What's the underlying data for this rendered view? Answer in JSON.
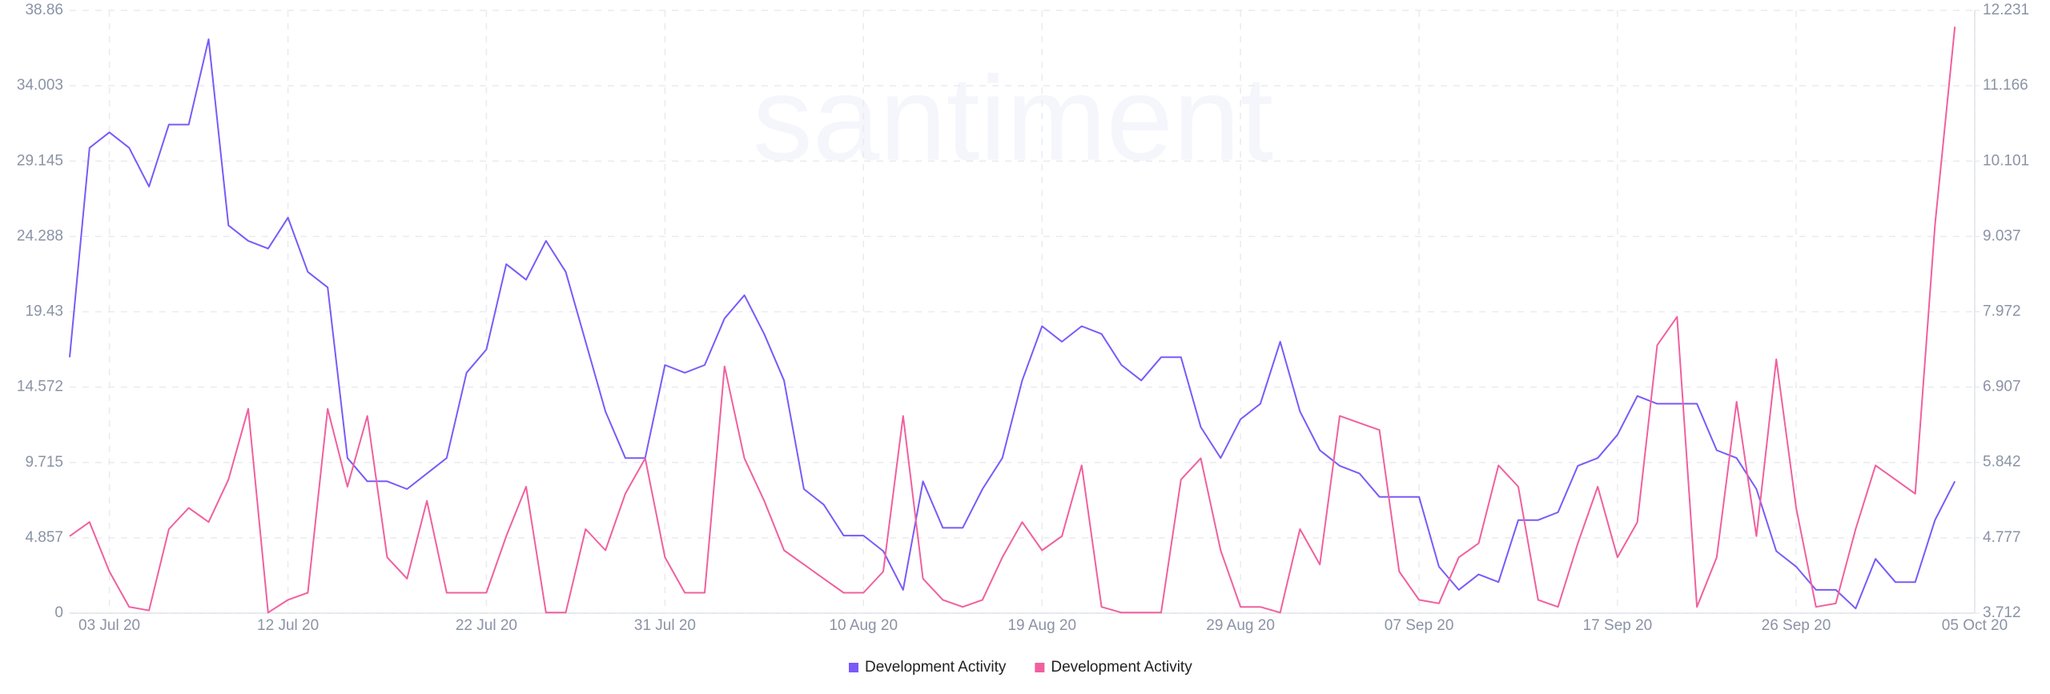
{
  "chart_data": {
    "type": "line",
    "watermark": "santiment",
    "x": [
      "2020-07-01",
      "2020-07-02",
      "2020-07-03",
      "2020-07-04",
      "2020-07-05",
      "2020-07-06",
      "2020-07-07",
      "2020-07-08",
      "2020-07-09",
      "2020-07-10",
      "2020-07-11",
      "2020-07-12",
      "2020-07-13",
      "2020-07-14",
      "2020-07-15",
      "2020-07-16",
      "2020-07-17",
      "2020-07-18",
      "2020-07-19",
      "2020-07-20",
      "2020-07-21",
      "2020-07-22",
      "2020-07-23",
      "2020-07-24",
      "2020-07-25",
      "2020-07-26",
      "2020-07-27",
      "2020-07-28",
      "2020-07-29",
      "2020-07-30",
      "2020-07-31",
      "2020-08-01",
      "2020-08-02",
      "2020-08-03",
      "2020-08-04",
      "2020-08-05",
      "2020-08-06",
      "2020-08-07",
      "2020-08-08",
      "2020-08-09",
      "2020-08-10",
      "2020-08-11",
      "2020-08-12",
      "2020-08-13",
      "2020-08-14",
      "2020-08-15",
      "2020-08-16",
      "2020-08-17",
      "2020-08-18",
      "2020-08-19",
      "2020-08-20",
      "2020-08-21",
      "2020-08-22",
      "2020-08-23",
      "2020-08-24",
      "2020-08-25",
      "2020-08-26",
      "2020-08-27",
      "2020-08-28",
      "2020-08-29",
      "2020-08-30",
      "2020-08-31",
      "2020-09-01",
      "2020-09-02",
      "2020-09-03",
      "2020-09-04",
      "2020-09-05",
      "2020-09-06",
      "2020-09-07",
      "2020-09-08",
      "2020-09-09",
      "2020-09-10",
      "2020-09-11",
      "2020-09-12",
      "2020-09-13",
      "2020-09-14",
      "2020-09-15",
      "2020-09-16",
      "2020-09-17",
      "2020-09-18",
      "2020-09-19",
      "2020-09-20",
      "2020-09-21",
      "2020-09-22",
      "2020-09-23",
      "2020-09-24",
      "2020-09-25",
      "2020-09-26",
      "2020-09-27",
      "2020-09-28",
      "2020-09-29",
      "2020-09-30",
      "2020-10-01",
      "2020-10-02",
      "2020-10-03",
      "2020-10-04"
    ],
    "series": [
      {
        "name": "Development Activity",
        "color": "#7a5af8",
        "axis": "y",
        "values": [
          16.5,
          30,
          31,
          30,
          27.5,
          31.5,
          31.5,
          37,
          25,
          24,
          23.5,
          25.5,
          22,
          21,
          10,
          8.5,
          8.5,
          8,
          9,
          10,
          15.5,
          17,
          22.5,
          21.5,
          24,
          22,
          17.5,
          13,
          10,
          10,
          16,
          15.5,
          16,
          19,
          20.5,
          18,
          15,
          8,
          7,
          5,
          5,
          4,
          1.5,
          8.5,
          5.5,
          5.5,
          8,
          10,
          15,
          18.5,
          17.5,
          18.5,
          18,
          16,
          15,
          16.5,
          16.5,
          12,
          10,
          12.5,
          13.5,
          17.5,
          13,
          10.5,
          9.5,
          9,
          7.5,
          7.5,
          7.5,
          3,
          1.5,
          2.5,
          2,
          6,
          6,
          6.5,
          9.5,
          10,
          11.5,
          14,
          13.5,
          13.5,
          13.5,
          10.5,
          10,
          8,
          4,
          3,
          1.5,
          1.5,
          0.3,
          3.5,
          2,
          2,
          6,
          8.5
        ]
      },
      {
        "name": "Development Activity",
        "color": "#f0609e",
        "axis": "y2",
        "values": [
          4.8,
          5.0,
          4.3,
          3.8,
          3.75,
          4.9,
          5.2,
          5.0,
          5.6,
          6.6,
          3.72,
          3.9,
          4.0,
          6.6,
          5.5,
          6.5,
          4.5,
          4.2,
          5.3,
          4.0,
          4.0,
          4.0,
          4.8,
          5.5,
          3.72,
          3.72,
          4.9,
          4.6,
          5.4,
          5.9,
          4.5,
          4.0,
          4.0,
          7.2,
          5.9,
          5.3,
          4.6,
          4.4,
          4.2,
          4.0,
          4.0,
          4.3,
          6.5,
          4.2,
          3.9,
          3.8,
          3.9,
          4.5,
          5.0,
          4.6,
          4.8,
          5.8,
          3.8,
          3.72,
          3.72,
          3.72,
          5.6,
          5.9,
          4.6,
          3.8,
          3.8,
          3.72,
          4.9,
          4.4,
          6.5,
          6.4,
          6.3,
          4.3,
          3.9,
          3.85,
          4.5,
          4.7,
          5.8,
          5.5,
          3.9,
          3.8,
          4.7,
          5.5,
          4.5,
          5.0,
          7.5,
          7.9,
          3.8,
          4.5,
          6.7,
          4.8,
          7.3,
          5.2,
          3.8,
          3.85,
          4.9,
          5.8,
          5.6,
          5.4,
          9.2,
          12.0
        ]
      }
    ],
    "xlim": [
      "2020-07-01",
      "2020-10-05"
    ],
    "xticks": [
      {
        "value": "2020-07-03",
        "label": "03 Jul 20"
      },
      {
        "value": "2020-07-12",
        "label": "12 Jul 20"
      },
      {
        "value": "2020-07-22",
        "label": "22 Jul 20"
      },
      {
        "value": "2020-07-31",
        "label": "31 Jul 20"
      },
      {
        "value": "2020-08-10",
        "label": "10 Aug 20"
      },
      {
        "value": "2020-08-19",
        "label": "19 Aug 20"
      },
      {
        "value": "2020-08-29",
        "label": "29 Aug 20"
      },
      {
        "value": "2020-09-07",
        "label": "07 Sep 20"
      },
      {
        "value": "2020-09-17",
        "label": "17 Sep 20"
      },
      {
        "value": "2020-09-26",
        "label": "26 Sep 20"
      },
      {
        "value": "2020-10-05",
        "label": "05 Oct 20"
      }
    ],
    "ylim": [
      0,
      38.86
    ],
    "yticks": [
      0,
      4.857,
      9.715,
      14.572,
      19.43,
      24.288,
      29.145,
      34.003,
      38.86
    ],
    "y2lim": [
      3.712,
      12.231
    ],
    "y2ticks": [
      3.712,
      4.777,
      5.842,
      6.907,
      7.972,
      9.037,
      10.101,
      11.166,
      12.231
    ],
    "grid": true,
    "legend": "bottom"
  }
}
